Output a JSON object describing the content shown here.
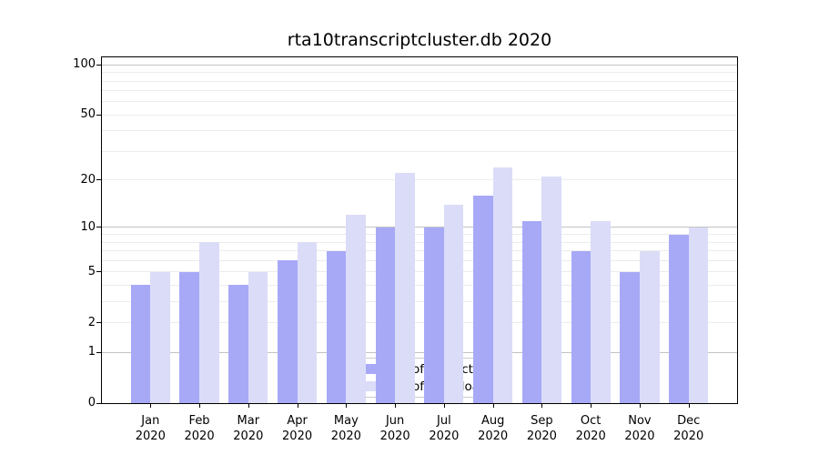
{
  "chart_data": {
    "type": "bar",
    "title": "rta10transcriptcluster.db 2020",
    "categories": [
      "Jan",
      "Feb",
      "Mar",
      "Apr",
      "May",
      "Jun",
      "Jul",
      "Aug",
      "Sep",
      "Oct",
      "Nov",
      "Dec"
    ],
    "category_year": "2020",
    "series": [
      {
        "name": "Nb of distinct IPs",
        "color": "#a7a9f7",
        "values": [
          4,
          5,
          4,
          6,
          7,
          10,
          10,
          16,
          11,
          7,
          5,
          9
        ]
      },
      {
        "name": "Nb of downloads",
        "color": "#dbdcf8",
        "values": [
          5,
          8,
          5,
          8,
          12,
          22,
          14,
          24,
          21,
          11,
          7,
          10
        ]
      }
    ],
    "yscale": "log10(1+v)",
    "ylim": [
      0,
      111
    ],
    "yticks": [
      100,
      50,
      20,
      10,
      5,
      2,
      1,
      0
    ],
    "major_gridlines": [
      1,
      10,
      100
    ],
    "minor_gridlines": [
      2,
      3,
      4,
      5,
      6,
      7,
      8,
      9,
      20,
      30,
      40,
      50,
      60,
      70,
      80,
      90
    ],
    "grid": true,
    "legend_position": "lower center"
  },
  "colors": {
    "background": "#ffffff",
    "plot_border": "#000000",
    "major_gridline": "#c3c3c3",
    "minor_gridline": "#ececec",
    "legend_border": "#cccccc",
    "text": "#000000"
  }
}
